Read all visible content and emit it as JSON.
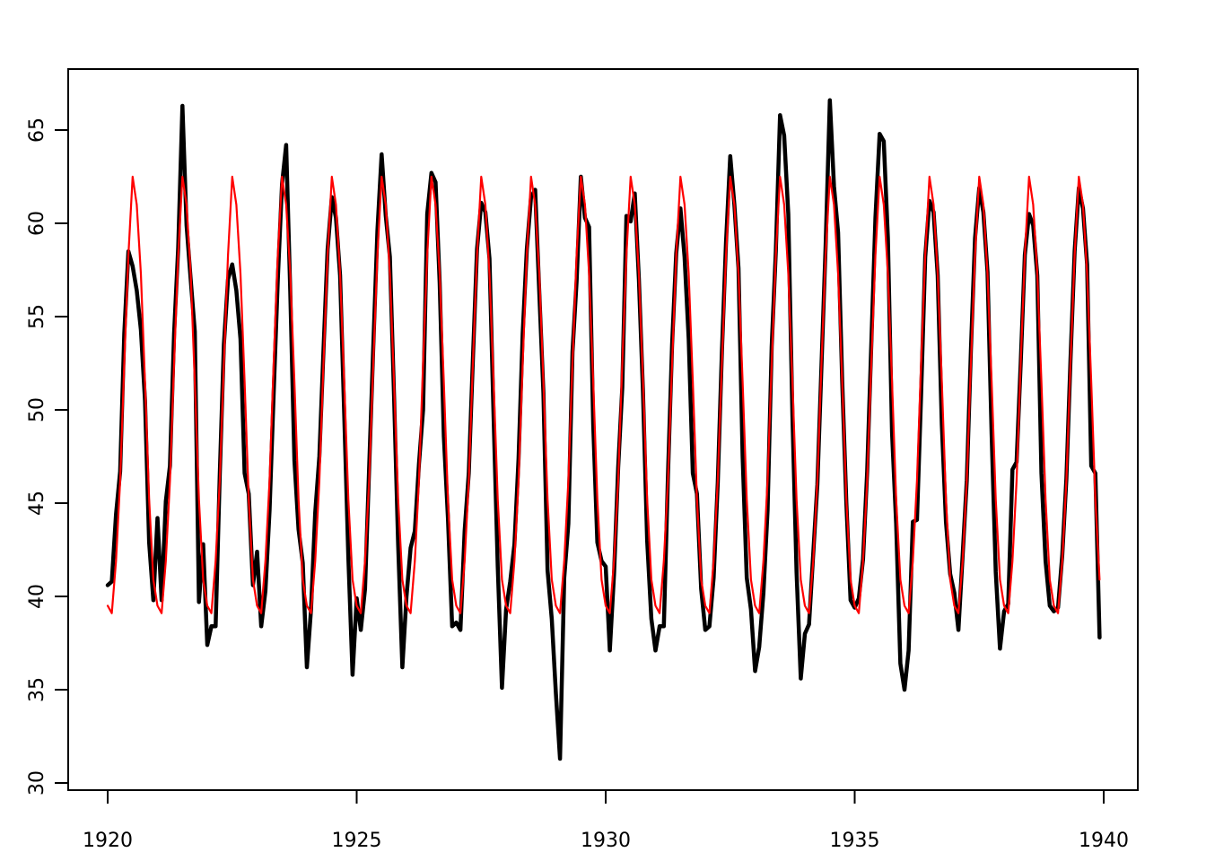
{
  "chart_data": {
    "type": "line",
    "title": "",
    "xlabel": "",
    "ylabel": "",
    "grid": false,
    "legend": "none",
    "background_color": "#ffffff",
    "box_color": "#000000",
    "x_axis": {
      "ticks": [
        1920,
        1925,
        1930,
        1935,
        1940
      ],
      "tick_labels": [
        "1920",
        "1925",
        "1930",
        "1935",
        "1940"
      ],
      "range": [
        1919.2,
        1940.7
      ]
    },
    "y_axis": {
      "ticks": [
        30,
        35,
        40,
        45,
        50,
        55,
        60,
        65
      ],
      "tick_labels": [
        "30",
        "35",
        "40",
        "45",
        "50",
        "55",
        "60",
        "65"
      ],
      "range": [
        29.9,
        68.0
      ],
      "label_rotation_deg": -90
    },
    "start_year": 1920,
    "end_year": 1939,
    "frequency_per_year": 12,
    "series": [
      {
        "name": "observed-monthly-temperature",
        "color": "#000000",
        "line_width": 4.5,
        "values": [
          40.6,
          40.8,
          44.4,
          46.7,
          54.1,
          58.5,
          57.7,
          56.4,
          54.3,
          50.5,
          42.9,
          39.8,
          44.2,
          39.8,
          45.1,
          47.0,
          54.1,
          58.7,
          66.3,
          59.9,
          57.0,
          54.2,
          39.7,
          42.8,
          37.4,
          38.4,
          38.4,
          46.5,
          53.5,
          57.0,
          57.8,
          56.4,
          53.8,
          46.6,
          45.5,
          40.6,
          42.4,
          38.4,
          40.3,
          44.6,
          50.9,
          57.0,
          62.1,
          64.2,
          56.3,
          47.3,
          43.6,
          41.8,
          36.2,
          39.3,
          44.5,
          47.5,
          53.2,
          58.6,
          61.4,
          60.3,
          57.2,
          49.8,
          42.1,
          35.8,
          39.9,
          38.2,
          40.4,
          46.9,
          53.4,
          59.6,
          63.7,
          60.4,
          58.2,
          50.8,
          42.8,
          36.2,
          40.0,
          42.6,
          43.5,
          47.1,
          50.0,
          60.5,
          62.7,
          62.2,
          56.8,
          48.6,
          44.2,
          38.4,
          38.6,
          38.2,
          43.5,
          46.6,
          52.7,
          58.6,
          61.1,
          60.6,
          58.1,
          49.6,
          41.6,
          35.1,
          39.3,
          40.8,
          42.8,
          47.4,
          54.1,
          58.6,
          61.4,
          61.8,
          56.3,
          50.9,
          41.4,
          38.8,
          34.8,
          31.3,
          41.0,
          43.9,
          53.1,
          56.9,
          62.5,
          60.3,
          59.8,
          49.2,
          42.9,
          41.9,
          41.6,
          37.1,
          41.2,
          46.9,
          51.2,
          60.4,
          60.1,
          61.6,
          57.0,
          50.9,
          43.0,
          38.8,
          37.1,
          38.4,
          38.4,
          46.5,
          53.5,
          58.4,
          60.8,
          58.2,
          53.8,
          46.6,
          45.5,
          40.4,
          38.2,
          38.4,
          41.0,
          46.1,
          53.1,
          59.0,
          63.6,
          61.0,
          57.6,
          47.5,
          41.0,
          39.3,
          36.0,
          37.3,
          40.2,
          44.6,
          53.4,
          58.5,
          65.8,
          64.7,
          60.5,
          49.7,
          41.3,
          35.6,
          38.0,
          38.5,
          42.3,
          46.0,
          52.4,
          58.8,
          66.6,
          62.0,
          59.5,
          51.5,
          45.0,
          39.8,
          39.4,
          39.9,
          42.0,
          46.7,
          53.5,
          60.3,
          64.8,
          64.4,
          59.2,
          48.8,
          43.9,
          36.4,
          35.0,
          37.1,
          44.0,
          44.1,
          50.8,
          58.2,
          61.2,
          60.6,
          57.2,
          49.2,
          44.0,
          41.2,
          40.2,
          38.2,
          42.2,
          46.2,
          53.2,
          59.2,
          61.9,
          60.6,
          57.4,
          48.7,
          41.3,
          37.2,
          39.2,
          39.6,
          46.8,
          47.2,
          52.5,
          58.3,
          60.5,
          59.9,
          57.2,
          46.6,
          41.9,
          39.5,
          39.2,
          39.4,
          42.2,
          46.3,
          52.7,
          58.5,
          61.9,
          60.8,
          57.8,
          47.0,
          46.6,
          37.8
        ]
      },
      {
        "name": "seasonal-fit",
        "color": "#FF0000",
        "line_width": 2.2,
        "monthly_cycle": [
          39.5,
          39.1,
          41.9,
          46.2,
          52.5,
          58.3,
          62.5,
          61.0,
          57.3,
          51.5,
          45.2,
          40.9
        ],
        "repeat_years": 20
      }
    ]
  },
  "layout_text": {
    "x_tick_labels": [
      "1920",
      "1925",
      "1930",
      "1935",
      "1940"
    ],
    "y_tick_labels": [
      "30",
      "35",
      "40",
      "45",
      "50",
      "55",
      "60",
      "65"
    ]
  }
}
